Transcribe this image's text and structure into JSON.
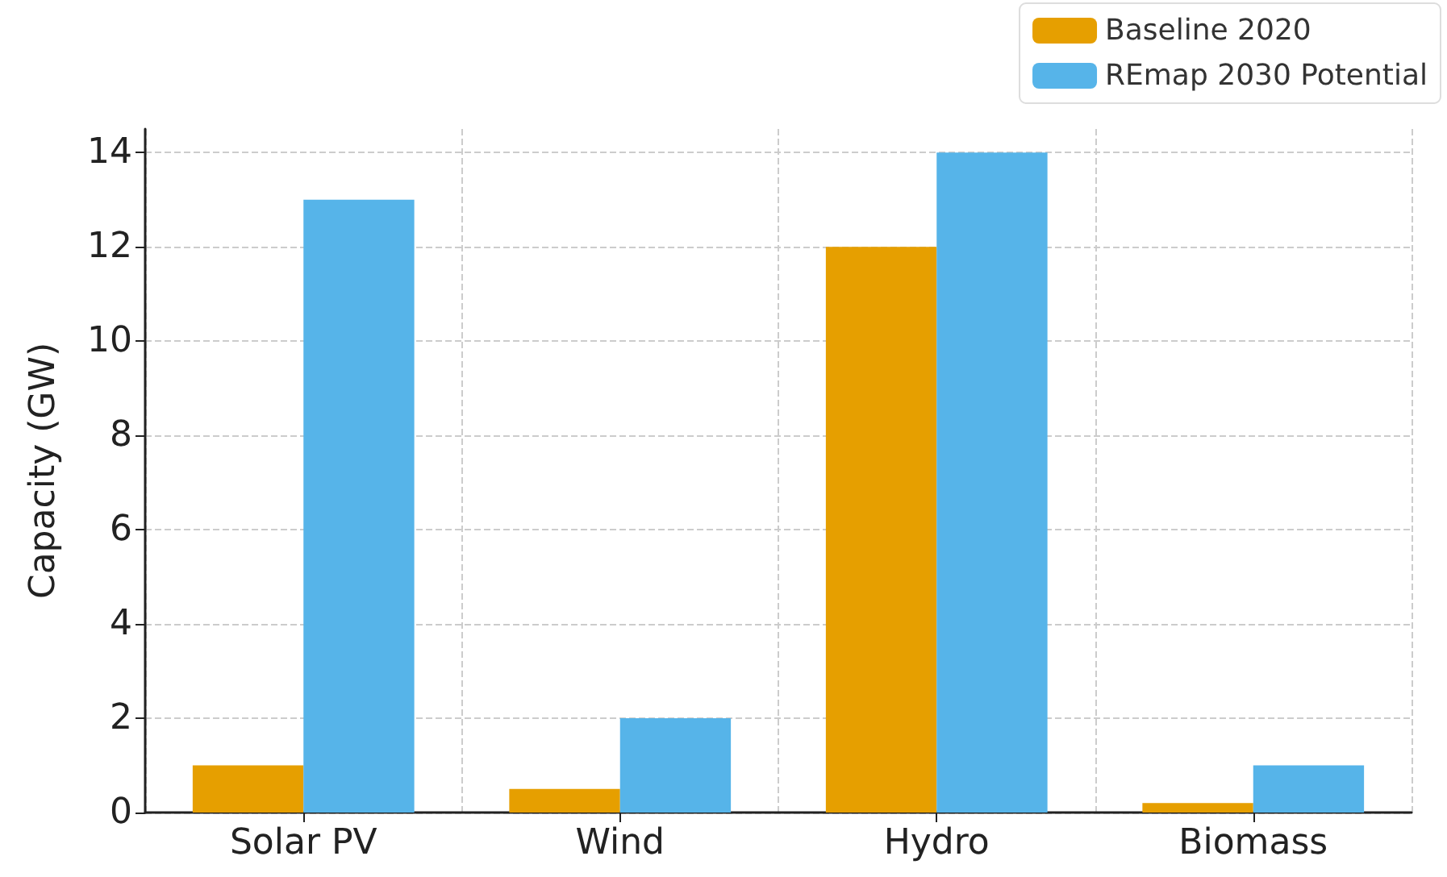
{
  "chart_data": {
    "type": "bar",
    "ylabel": "Capacity (GW)",
    "categories": [
      "Solar PV",
      "Wind",
      "Hydro",
      "Biomass"
    ],
    "series": [
      {
        "name": "Baseline 2020",
        "color": "#e69f00",
        "values": [
          1,
          0.5,
          12,
          0.2
        ]
      },
      {
        "name": "REmap 2030 Potential",
        "color": "#56b4e9",
        "values": [
          13,
          2,
          14,
          1
        ]
      }
    ],
    "ylim": [
      0,
      14.5
    ],
    "yticks": [
      0,
      2,
      4,
      6,
      8,
      10,
      12,
      14
    ],
    "grid": true,
    "legend": "top right"
  }
}
